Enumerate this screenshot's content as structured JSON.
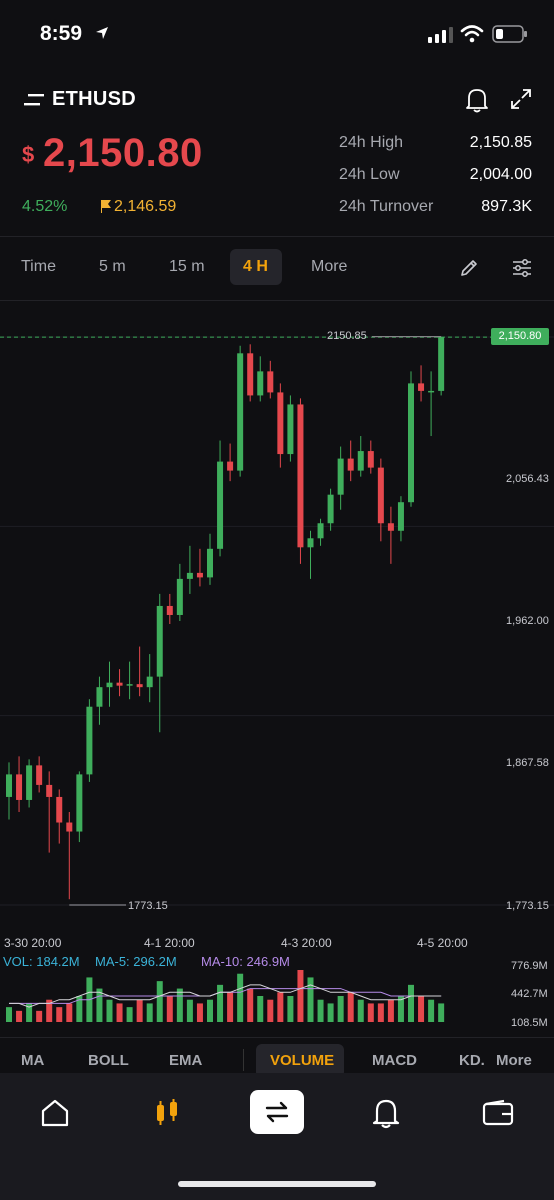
{
  "status_bar": {
    "time": "8:59"
  },
  "header": {
    "symbol": "ETHUSD"
  },
  "ticker": {
    "currency_symbol": "$",
    "price": "2,150.80",
    "change_pct": "4.52%",
    "mark_price": "2,146.59",
    "stats": [
      {
        "label": "24h High",
        "value": "2,150.85"
      },
      {
        "label": "24h Low",
        "value": "2,004.00"
      },
      {
        "label": "24h Turnover",
        "value": "897.3K"
      }
    ]
  },
  "timeframes": [
    {
      "label": "Time",
      "active": false
    },
    {
      "label": "5 m",
      "active": false
    },
    {
      "label": "15 m",
      "active": false
    },
    {
      "label": "4 H",
      "active": true
    },
    {
      "label": "More",
      "active": false
    }
  ],
  "chart": {
    "high_label": "2150.85",
    "low_label": "1773.15",
    "current_price_tag": "2,150.80",
    "y_ticks": [
      "2,056.43",
      "1,962.00",
      "1,867.58",
      "1,773.15"
    ],
    "x_ticks": [
      "3-30 20:00",
      "4-1 20:00",
      "4-3 20:00",
      "4-5 20:00"
    ],
    "volume_legend": {
      "vol": "VOL: 184.2M",
      "ma5": "MA-5: 296.2M",
      "ma10": "MA-10: 246.9M"
    },
    "volume_ticks": [
      "776.9M",
      "442.7M",
      "108.5M"
    ]
  },
  "colors": {
    "up": "#3fae5c",
    "down": "#e5484d",
    "accent": "#f2a20c",
    "ma5": "#3bb3d8",
    "ma10": "#b58be8"
  },
  "indicators": [
    {
      "label": "MA",
      "active": false
    },
    {
      "label": "BOLL",
      "active": false
    },
    {
      "label": "EMA",
      "active": false
    },
    {
      "label": "VOLUME",
      "active": true
    },
    {
      "label": "MACD",
      "active": false
    },
    {
      "label": "KD.",
      "active": false
    },
    {
      "label": "More",
      "active": false
    }
  ],
  "tabbar": {
    "items": [
      "home-icon",
      "candles-icon",
      "swap-icon",
      "bell-icon",
      "wallet-icon"
    ]
  },
  "chart_data": {
    "type": "candlestick",
    "y_axis": [
      1773.15,
      2150.85
    ],
    "candles": [
      {
        "o": 1845,
        "h": 1868,
        "l": 1830,
        "c": 1860
      },
      {
        "o": 1860,
        "h": 1872,
        "l": 1835,
        "c": 1843
      },
      {
        "o": 1843,
        "h": 1870,
        "l": 1838,
        "c": 1866
      },
      {
        "o": 1866,
        "h": 1872,
        "l": 1848,
        "c": 1853
      },
      {
        "o": 1853,
        "h": 1862,
        "l": 1808,
        "c": 1845
      },
      {
        "o": 1845,
        "h": 1850,
        "l": 1814,
        "c": 1828
      },
      {
        "o": 1828,
        "h": 1835,
        "l": 1777,
        "c": 1822
      },
      {
        "o": 1822,
        "h": 1862,
        "l": 1815,
        "c": 1860
      },
      {
        "o": 1860,
        "h": 1910,
        "l": 1855,
        "c": 1905
      },
      {
        "o": 1905,
        "h": 1925,
        "l": 1893,
        "c": 1918
      },
      {
        "o": 1918,
        "h": 1935,
        "l": 1905,
        "c": 1921
      },
      {
        "o": 1921,
        "h": 1930,
        "l": 1912,
        "c": 1919
      },
      {
        "o": 1919,
        "h": 1935,
        "l": 1910,
        "c": 1920
      },
      {
        "o": 1920,
        "h": 1945,
        "l": 1912,
        "c": 1918
      },
      {
        "o": 1918,
        "h": 1940,
        "l": 1908,
        "c": 1925
      },
      {
        "o": 1925,
        "h": 1980,
        "l": 1888,
        "c": 1972
      },
      {
        "o": 1972,
        "h": 1980,
        "l": 1960,
        "c": 1966
      },
      {
        "o": 1966,
        "h": 2000,
        "l": 1962,
        "c": 1990
      },
      {
        "o": 1990,
        "h": 2012,
        "l": 1980,
        "c": 1994
      },
      {
        "o": 1994,
        "h": 2010,
        "l": 1985,
        "c": 1991
      },
      {
        "o": 1991,
        "h": 2020,
        "l": 1986,
        "c": 2010
      },
      {
        "o": 2010,
        "h": 2082,
        "l": 2005,
        "c": 2068
      },
      {
        "o": 2068,
        "h": 2080,
        "l": 2055,
        "c": 2062
      },
      {
        "o": 2062,
        "h": 2145,
        "l": 2058,
        "c": 2140
      },
      {
        "o": 2140,
        "h": 2146,
        "l": 2108,
        "c": 2112
      },
      {
        "o": 2112,
        "h": 2138,
        "l": 2108,
        "c": 2128
      },
      {
        "o": 2128,
        "h": 2135,
        "l": 2110,
        "c": 2114
      },
      {
        "o": 2114,
        "h": 2120,
        "l": 2064,
        "c": 2073
      },
      {
        "o": 2073,
        "h": 2112,
        "l": 2068,
        "c": 2106
      },
      {
        "o": 2106,
        "h": 2110,
        "l": 2000,
        "c": 2011
      },
      {
        "o": 2011,
        "h": 2022,
        "l": 1990,
        "c": 2017
      },
      {
        "o": 2017,
        "h": 2030,
        "l": 2012,
        "c": 2027
      },
      {
        "o": 2027,
        "h": 2050,
        "l": 2022,
        "c": 2046
      },
      {
        "o": 2046,
        "h": 2078,
        "l": 2036,
        "c": 2070
      },
      {
        "o": 2070,
        "h": 2082,
        "l": 2055,
        "c": 2062
      },
      {
        "o": 2062,
        "h": 2085,
        "l": 2058,
        "c": 2075
      },
      {
        "o": 2075,
        "h": 2082,
        "l": 2060,
        "c": 2064
      },
      {
        "o": 2064,
        "h": 2070,
        "l": 2015,
        "c": 2027
      },
      {
        "o": 2027,
        "h": 2038,
        "l": 2000,
        "c": 2022
      },
      {
        "o": 2022,
        "h": 2045,
        "l": 2015,
        "c": 2041
      },
      {
        "o": 2041,
        "h": 2128,
        "l": 2038,
        "c": 2120
      },
      {
        "o": 2120,
        "h": 2132,
        "l": 2108,
        "c": 2115
      },
      {
        "o": 2115,
        "h": 2128,
        "l": 2085,
        "c": 2115
      },
      {
        "o": 2115,
        "h": 2151,
        "l": 2112,
        "c": 2150.8
      }
    ],
    "volume": [
      4,
      3,
      5,
      3,
      6,
      4,
      5,
      7,
      12,
      9,
      6,
      5,
      4,
      6,
      5,
      11,
      7,
      9,
      6,
      5,
      6,
      10,
      8,
      13,
      9,
      7,
      6,
      8,
      7,
      14,
      12,
      6,
      5,
      7,
      8,
      6,
      5,
      5,
      6,
      7,
      10,
      7,
      6,
      5
    ],
    "ma5_line": [
      5,
      5,
      4,
      5,
      5,
      6,
      6,
      7,
      8,
      8,
      7,
      6,
      6,
      6,
      6,
      7,
      8,
      8,
      8,
      7,
      7,
      8,
      8,
      9,
      10,
      10,
      9,
      8,
      8,
      9,
      10,
      9,
      8,
      8,
      8,
      7,
      6,
      6,
      6,
      6,
      7,
      7,
      7,
      7
    ],
    "ma10_line": [
      5,
      5,
      5,
      5,
      5,
      5,
      5,
      6,
      6,
      7,
      7,
      7,
      7,
      7,
      7,
      7,
      7,
      7,
      7,
      7,
      7,
      8,
      8,
      8,
      9,
      9,
      9,
      9,
      9,
      9,
      9,
      9,
      9,
      9,
      8,
      8,
      8,
      8,
      7,
      7,
      7,
      7,
      7,
      7
    ]
  }
}
